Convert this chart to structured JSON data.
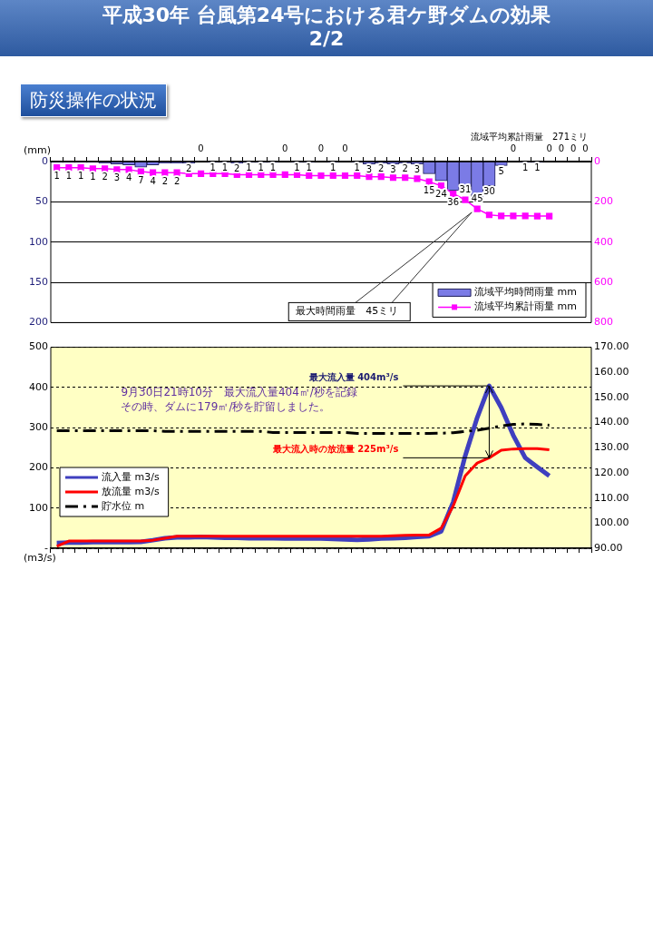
{
  "chart_data": [
    {
      "type": "bar",
      "title": "平成30年  台風第24号における君ケ野ダムの効果\n2/2",
      "subtitle": "防災操作の状況",
      "ylabel": "(mm)",
      "categories": [
        null,
        null,
        null,
        null,
        null,
        null,
        null,
        null,
        null,
        null,
        null,
        null,
        null,
        null,
        null,
        null,
        null,
        null,
        null,
        null,
        null,
        null,
        null,
        null,
        null,
        null,
        null,
        null,
        null,
        null,
        null,
        null,
        null,
        null,
        null,
        null,
        null,
        null,
        null,
        null,
        null,
        null,
        null,
        null,
        null
      ],
      "series": [
        {
          "name": "流域平均時間雨量 mm",
          "type": "bar",
          "color": "#7b7be6",
          "values": [
            1,
            1,
            1,
            1,
            2,
            3,
            4,
            7,
            4,
            2,
            2,
            2,
            0,
            1,
            1,
            2,
            1,
            1,
            1,
            0,
            1,
            1,
            0,
            1,
            0,
            1,
            3,
            2,
            3,
            2,
            3,
            15,
            24,
            36,
            31,
            45,
            30,
            5,
            0,
            1,
            1,
            0,
            0,
            0,
            0
          ],
          "value_labels": [
            "1",
            "1",
            "1",
            "1",
            "2",
            "3",
            "4",
            "7",
            "4",
            "2",
            "2",
            "2",
            "0",
            "1",
            "1",
            "2",
            "1",
            "1",
            "1",
            "0",
            "1",
            "1",
            "0",
            "1",
            "0",
            "1",
            "3",
            "2",
            "3",
            "2",
            "3",
            "15",
            "24",
            "36",
            "31",
            "45",
            "30",
            "5",
            "0",
            "1",
            "1",
            "0",
            "0",
            "0",
            "0"
          ]
        },
        {
          "name": "流域平均累計雨量 mm",
          "type": "line",
          "axis": "y2",
          "marker": "square",
          "color": "#ff00ff",
          "values": [
            30,
            30,
            30,
            35,
            35,
            40,
            40,
            50,
            55,
            55,
            55,
            60,
            60,
            60,
            60,
            65,
            65,
            65,
            65,
            65,
            65,
            70,
            70,
            70,
            70,
            70,
            75,
            75,
            80,
            80,
            85,
            100,
            120,
            160,
            190,
            235,
            265,
            270,
            270,
            270,
            271,
            271,
            null,
            null,
            null
          ]
        }
      ],
      "ylim": [
        200,
        0
      ],
      "yticks": [
        0,
        50,
        100,
        150,
        200
      ],
      "y2lim": [
        800,
        0
      ],
      "y2ticks": [
        0,
        200,
        400,
        600,
        800
      ],
      "grid": "y",
      "legend": "bottom right",
      "annotations": [
        "流域平均累計雨量　271ミリ",
        "最大時間雨量　45ミリ"
      ]
    },
    {
      "type": "line",
      "ylabel": "(m3/s)",
      "categories": [
        null,
        null,
        null,
        null,
        null,
        null,
        null,
        null,
        null,
        null,
        null,
        null,
        null,
        null,
        null,
        null,
        null,
        null,
        null,
        null,
        null,
        null,
        null,
        null,
        null,
        null,
        null,
        null,
        null,
        null,
        null,
        null,
        null,
        null,
        null,
        null,
        null,
        null,
        null,
        null,
        null,
        null,
        null,
        null,
        null
      ],
      "series": [
        {
          "name": "流入量 m3/s",
          "color": "#3f3fbf",
          "values": [
            13,
            14,
            14,
            15,
            15,
            15,
            15,
            16,
            20,
            25,
            27,
            27,
            28,
            27,
            26,
            26,
            25,
            25,
            25,
            24,
            24,
            24,
            24,
            23,
            22,
            21,
            22,
            24,
            25,
            26,
            28,
            30,
            42,
            115,
            230,
            325,
            404,
            350,
            281,
            225,
            202,
            180,
            null,
            null,
            null
          ]
        },
        {
          "name": "放流量 m3/s",
          "color": "#ff0000",
          "values": [
            5,
            18,
            18,
            18,
            18,
            18,
            18,
            18,
            20,
            25,
            30,
            30,
            30,
            30,
            30,
            30,
            30,
            30,
            30,
            30,
            30,
            30,
            30,
            30,
            30,
            30,
            30,
            30,
            31,
            32,
            33,
            33,
            50,
            105,
            180,
            212,
            225,
            244,
            247,
            248,
            248,
            245,
            null,
            null,
            null
          ]
        },
        {
          "name": "貯水位 m",
          "axis": "y2",
          "line_style": "dashed",
          "color": "#000000",
          "values": [
            136.8,
            136.8,
            136.8,
            136.8,
            136.8,
            136.8,
            136.8,
            136.8,
            136.8,
            136.5,
            136.5,
            136.5,
            136.5,
            136.5,
            136.5,
            136.5,
            136.5,
            136.5,
            136.1,
            136.1,
            136.1,
            136.1,
            136.1,
            136.1,
            136.1,
            135.7,
            135.7,
            135.7,
            135.7,
            135.7,
            135.7,
            135.7,
            135.8,
            136.0,
            136.5,
            137.0,
            137.8,
            138.7,
            139.3,
            139.5,
            139.3,
            139.0,
            null,
            null,
            null
          ]
        }
      ],
      "ylim": [
        0,
        500
      ],
      "yticks": [
        {
          "value": 0,
          "label": "-"
        },
        100,
        200,
        300,
        400,
        500
      ],
      "y2lim": [
        90,
        170
      ],
      "y2ticks": [
        {
          "value": 90,
          "label": "90.00"
        },
        {
          "value": 100,
          "label": "100.00"
        },
        {
          "value": 110,
          "label": "110.00"
        },
        {
          "value": 120,
          "label": "120.00"
        },
        {
          "value": 130,
          "label": "130.00"
        },
        {
          "value": 140,
          "label": "140.00"
        },
        {
          "value": 150,
          "label": "150.00"
        },
        {
          "value": 160,
          "label": "160.00"
        },
        {
          "value": 170,
          "label": "170.00"
        }
      ],
      "grid": "y",
      "legend": "left",
      "marker": "none",
      "annotations": [
        "9月30日21時10分　最大流入量404㎥/秒を記録",
        "その時、ダムに179㎥/秒を貯留しました。",
        "最大流入量 404m³/s",
        "最大流入時の放流量 225m³/s"
      ]
    }
  ]
}
